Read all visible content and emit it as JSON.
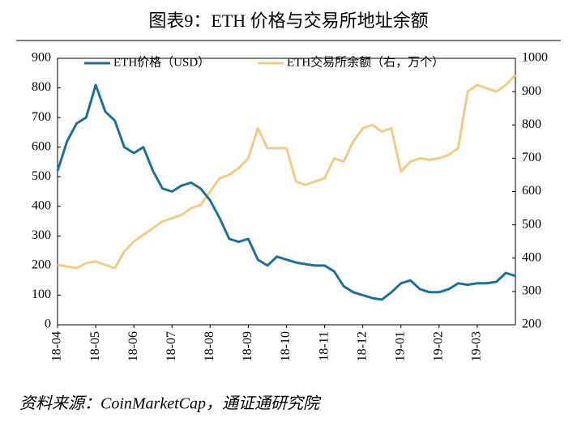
{
  "chart_data": {
    "type": "line",
    "title": "图表9：ETH 价格与交易所地址余额",
    "source": "资料来源：CoinMarketCap，通证通研究院",
    "categories": [
      "18-04",
      null,
      null,
      null,
      "18-05",
      null,
      null,
      null,
      "18-06",
      null,
      null,
      null,
      "18-07",
      null,
      null,
      null,
      "18-08",
      null,
      null,
      null,
      "18-09",
      null,
      null,
      null,
      "18-10",
      null,
      null,
      null,
      "18-11",
      null,
      null,
      null,
      "18-12",
      null,
      null,
      null,
      "19-01",
      null,
      null,
      null,
      "19-02",
      null,
      null,
      null,
      "19-03",
      null,
      null,
      null,
      null
    ],
    "series": [
      {
        "name": "ETH价格（USD）",
        "color": "#1f6f98",
        "values": [
          520,
          620,
          680,
          700,
          810,
          720,
          690,
          600,
          580,
          600,
          520,
          460,
          450,
          470,
          480,
          460,
          420,
          360,
          290,
          280,
          290,
          220,
          200,
          230,
          220,
          210,
          205,
          200,
          200,
          180,
          130,
          110,
          100,
          90,
          85,
          110,
          140,
          150,
          120,
          110,
          110,
          120,
          140,
          135,
          140,
          140,
          145,
          175,
          165
        ]
      },
      {
        "name": "ETH交易所余额（右，万个）",
        "color": "#efcd88",
        "axis": "y2",
        "values": [
          380,
          375,
          370,
          385,
          390,
          380,
          370,
          420,
          450,
          470,
          490,
          510,
          520,
          530,
          550,
          560,
          600,
          640,
          650,
          670,
          700,
          790,
          730,
          730,
          730,
          630,
          620,
          630,
          640,
          700,
          690,
          750,
          790,
          800,
          780,
          790,
          660,
          690,
          700,
          695,
          700,
          710,
          730,
          900,
          920,
          910,
          900,
          920,
          950
        ]
      }
    ],
    "ylim": [
      0,
      900
    ],
    "yticks": [
      0,
      100,
      200,
      300,
      400,
      500,
      600,
      700,
      800,
      900
    ],
    "y2lim": [
      200,
      1000
    ],
    "y2ticks": [
      200,
      300,
      400,
      500,
      600,
      700,
      800,
      900,
      1000
    ]
  }
}
